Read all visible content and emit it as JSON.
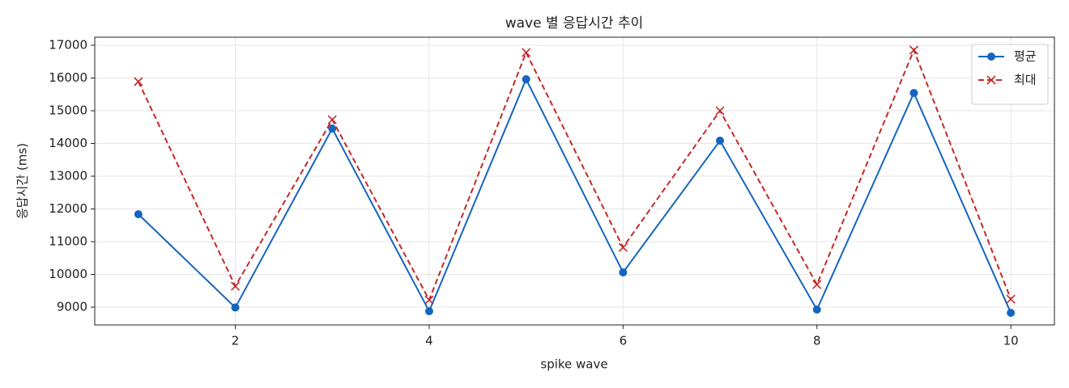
{
  "chart_data": {
    "type": "line",
    "title": "wave 별 응답시간 추이",
    "xlabel": "spike wave",
    "ylabel": "응답시간 (ms)",
    "x": [
      1,
      2,
      3,
      4,
      5,
      6,
      7,
      8,
      9,
      10
    ],
    "series": [
      {
        "name": "평균",
        "color": "#1565c0",
        "marker": "o",
        "linestyle": "solid",
        "values": [
          11840,
          8990,
          14457,
          8877,
          15963,
          10062,
          14086,
          8926,
          15543,
          8827
        ]
      },
      {
        "name": "최대",
        "color": "#c62828",
        "marker": "x",
        "linestyle": "dashed",
        "values": [
          15889,
          9642,
          14728,
          9222,
          16778,
          10827,
          15000,
          9691,
          16852,
          9247
        ]
      }
    ],
    "xlim": [
      0.55,
      10.45
    ],
    "xticks": [
      2,
      4,
      6,
      8,
      10
    ],
    "ylim": [
      8457,
      17247
    ],
    "yticks": [
      9000,
      10000,
      11000,
      12000,
      13000,
      14000,
      15000,
      16000,
      17000
    ],
    "grid": true,
    "legend": "upper right"
  }
}
